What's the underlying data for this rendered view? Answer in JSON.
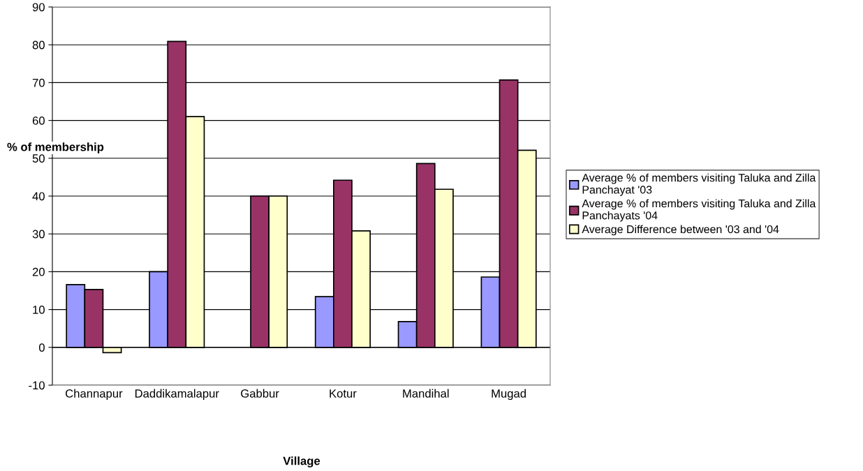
{
  "chart_data": {
    "type": "bar",
    "xlabel": "Village",
    "ylabel": "% of membership",
    "categories": [
      "Channapur",
      "Daddikamalapur",
      "Gabbur",
      "Kotur",
      "Mandihal",
      "Mugad"
    ],
    "series": [
      {
        "name": "Average % of members visiting Taluka and Zilla Panchayat '03",
        "color": "#9999ff",
        "values": [
          16.6,
          20,
          null,
          13.4,
          6.8,
          18.6
        ]
      },
      {
        "name": "Average % of members visiting Taluka and Zilla Panchayats '04",
        "color": "#993366",
        "values": [
          15.3,
          80.9,
          40,
          44.2,
          48.6,
          70.7
        ]
      },
      {
        "name": "Average Difference between '03 and '04",
        "color": "#ffffcc",
        "values": [
          -1.4,
          61,
          40,
          30.8,
          41.8,
          52.1
        ]
      }
    ],
    "ylim": [
      -10,
      90
    ],
    "yticks": [
      -10,
      0,
      10,
      20,
      30,
      40,
      50,
      60,
      70,
      80,
      90
    ],
    "grid": "y",
    "legend": "right"
  }
}
